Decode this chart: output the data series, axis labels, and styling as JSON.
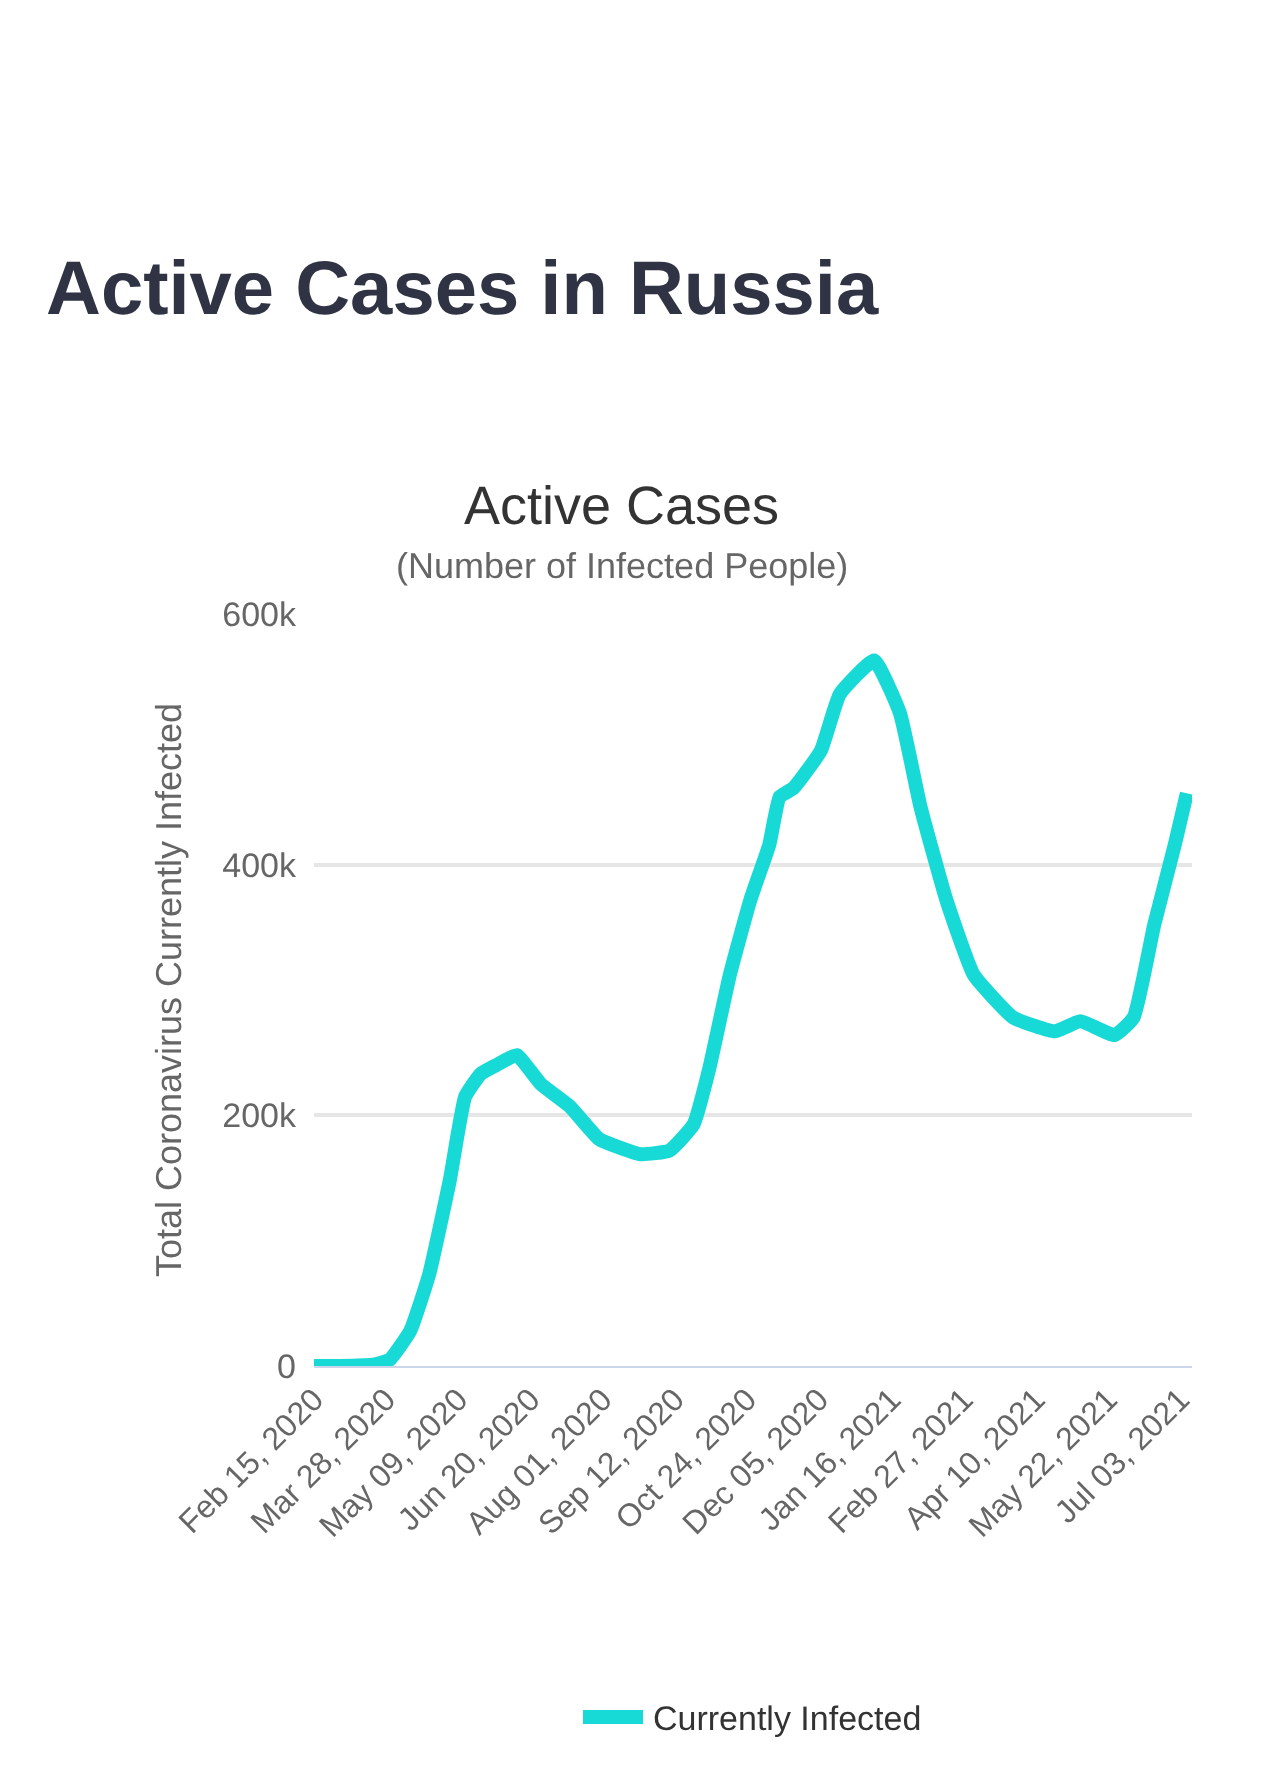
{
  "chart_data": {
    "type": "line",
    "title": "Active Cases",
    "subtitle": "(Number of Infected People)",
    "ylabel": "Total Coronavirus Currently Infected",
    "annotations": [
      "Active Cases in Russia"
    ],
    "x": [
      "2020-02-15",
      "2020-03-01",
      "2020-03-20",
      "2020-03-30",
      "2020-04-11",
      "2020-04-22",
      "2020-05-04",
      "2020-05-13",
      "2020-05-22",
      "2020-05-31",
      "2020-06-12",
      "2020-06-26",
      "2020-07-13",
      "2020-07-30",
      "2020-08-23",
      "2020-09-09",
      "2020-09-23",
      "2020-10-02",
      "2020-10-14",
      "2020-10-26",
      "2020-11-06",
      "2020-11-12",
      "2020-11-20",
      "2020-12-06",
      "2020-12-17",
      "2021-01-06",
      "2021-01-21",
      "2021-02-02",
      "2021-02-17",
      "2021-03-05",
      "2021-03-28",
      "2021-04-21",
      "2021-05-06",
      "2021-05-26",
      "2021-06-06",
      "2021-06-18",
      "2021-06-30",
      "2021-07-07"
    ],
    "series": [
      {
        "name": "Currently Infected",
        "color": "#17d9d5",
        "values": [
          0,
          0,
          1000,
          5000,
          28000,
          73000,
          148000,
          215000,
          233000,
          240000,
          248000,
          225000,
          207000,
          181000,
          169000,
          172000,
          193000,
          237000,
          312000,
          372000,
          416000,
          454000,
          461000,
          491000,
          536000,
          563000,
          521000,
          446000,
          372000,
          312000,
          278000,
          267000,
          275000,
          264000,
          278000,
          352000,
          416000,
          457000
        ]
      }
    ],
    "xlim": [
      "2020-02-15",
      "2021-07-10"
    ],
    "xticks": [
      {
        "value": "2020-02-15",
        "label": "Feb 15, 2020"
      },
      {
        "value": "2020-03-28",
        "label": "Mar 28, 2020"
      },
      {
        "value": "2020-05-09",
        "label": "May 09, 2020"
      },
      {
        "value": "2020-06-20",
        "label": "Jun 20, 2020"
      },
      {
        "value": "2020-08-01",
        "label": "Aug 01, 2020"
      },
      {
        "value": "2020-09-12",
        "label": "Sep 12, 2020"
      },
      {
        "value": "2020-10-24",
        "label": "Oct 24, 2020"
      },
      {
        "value": "2020-12-05",
        "label": "Dec 05, 2020"
      },
      {
        "value": "2021-01-16",
        "label": "Jan 16, 2021"
      },
      {
        "value": "2021-02-27",
        "label": "Feb 27, 2021"
      },
      {
        "value": "2021-04-10",
        "label": "Apr 10, 2021"
      },
      {
        "value": "2021-05-22",
        "label": "May 22, 2021"
      },
      {
        "value": "2021-07-03",
        "label": "Jul 03, 2021"
      }
    ],
    "ylim": [
      0,
      600000
    ],
    "yticks": [
      0,
      {
        "value": 200000,
        "label": "200k"
      },
      {
        "value": 400000,
        "label": "400k"
      },
      {
        "value": 600000,
        "label": "600k"
      }
    ],
    "grid": "y",
    "legend": "bottom",
    "marker": "none",
    "line_style": "solid"
  }
}
